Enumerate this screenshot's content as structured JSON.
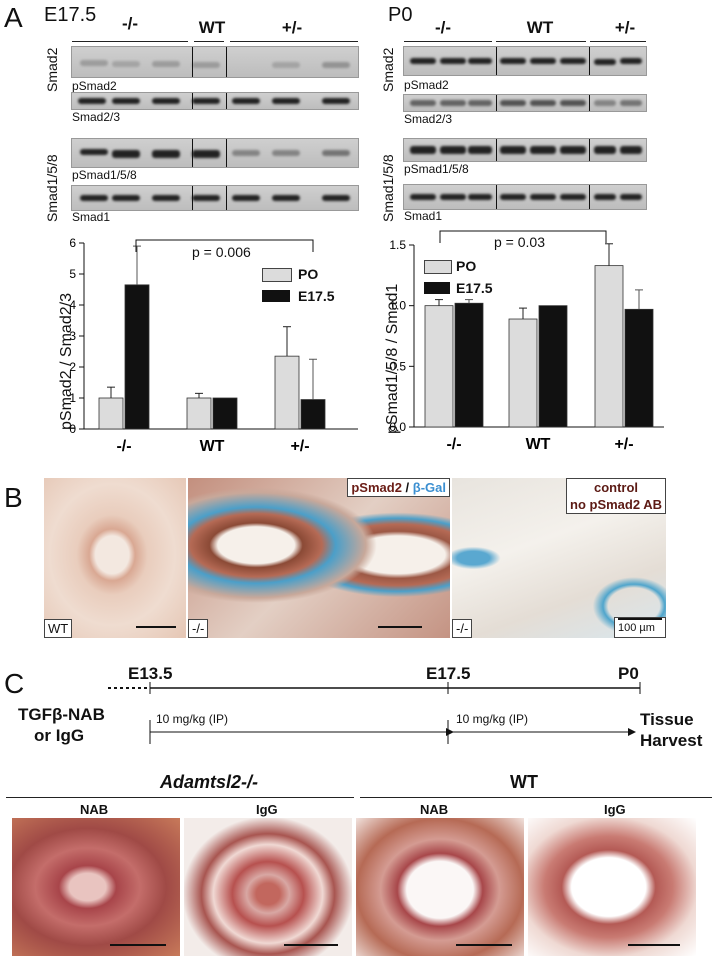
{
  "panels": {
    "a": "A",
    "b": "B",
    "c": "C"
  },
  "left": {
    "stage": "E17.5",
    "groups": [
      "-/-",
      "WT",
      "+/-"
    ],
    "side1": "Smad2",
    "side2": "Smad1/5/8",
    "blots": [
      "pSmad2",
      "Smad2/3",
      "pSmad1/5/8",
      "Smad1"
    ],
    "ylabel": "pSmad2 / Smad2/3",
    "pvalue": "p = 0.006",
    "yticks": [
      "0",
      "1",
      "2",
      "3",
      "4",
      "5",
      "6"
    ]
  },
  "right": {
    "stage": "P0",
    "groups": [
      "-/-",
      "WT",
      "+/-"
    ],
    "side1": "Smad2",
    "side2": "Smad1/5/8",
    "blots": [
      "pSmad2",
      "Smad2/3",
      "pSmad1/5/8",
      "Smad1"
    ],
    "ylabel": "pSmad1/5/8 / Smad1",
    "pvalue": "p = 0.03",
    "yticks": [
      "0.0",
      "0.5",
      "1.0",
      "1.5"
    ]
  },
  "legend": {
    "po": "PO",
    "e175": "E17.5",
    "po_color": "#dcdcdc",
    "e175_color": "#111111"
  },
  "chart_data": [
    {
      "type": "bar",
      "categories": [
        "-/-",
        "WT",
        "+/-"
      ],
      "ylabel": "pSmad2 / Smad2/3",
      "ylim": [
        0,
        6
      ],
      "series": [
        {
          "name": "PO",
          "values": [
            1.0,
            1.0,
            2.35
          ],
          "errors": [
            0.35,
            0.15,
            0.95
          ]
        },
        {
          "name": "E17.5",
          "values": [
            4.65,
            1.0,
            0.95
          ],
          "errors": [
            1.25,
            0,
            1.3
          ]
        }
      ],
      "annotation": "p = 0.006"
    },
    {
      "type": "bar",
      "categories": [
        "-/-",
        "WT",
        "+/-"
      ],
      "ylabel": "pSmad1/5/8 / Smad1",
      "ylim": [
        0,
        1.5
      ],
      "series": [
        {
          "name": "PO",
          "values": [
            1.0,
            0.89,
            1.33
          ],
          "errors": [
            0.05,
            0.09,
            0.18
          ]
        },
        {
          "name": "E17.5",
          "values": [
            1.02,
            1.0,
            0.97
          ],
          "errors": [
            0.03,
            0,
            0.16
          ]
        }
      ],
      "annotation": "p = 0.03"
    }
  ],
  "panelB": {
    "label1": "WT",
    "label2": "-/-",
    "label3": "-/-",
    "stain_a": "pSmad2",
    "stain_sep": " / ",
    "stain_b": "β-Gal",
    "control1": "control",
    "control2": "no pSmad2 AB",
    "scale": "100 µm"
  },
  "panelC": {
    "t1": "E13.5",
    "t2": "E17.5",
    "t3": "P0",
    "treatment1": "TGFβ-NAB",
    "treatment2": "or IgG",
    "dose1": "10 mg/kg (IP)",
    "dose2": "10 mg/kg (IP)",
    "harvest1": "Tissue",
    "harvest2": "Harvest",
    "geno1": "Adamtsl2-/-",
    "geno2": "WT",
    "sub": [
      "NAB",
      "IgG",
      "NAB",
      "IgG"
    ]
  }
}
